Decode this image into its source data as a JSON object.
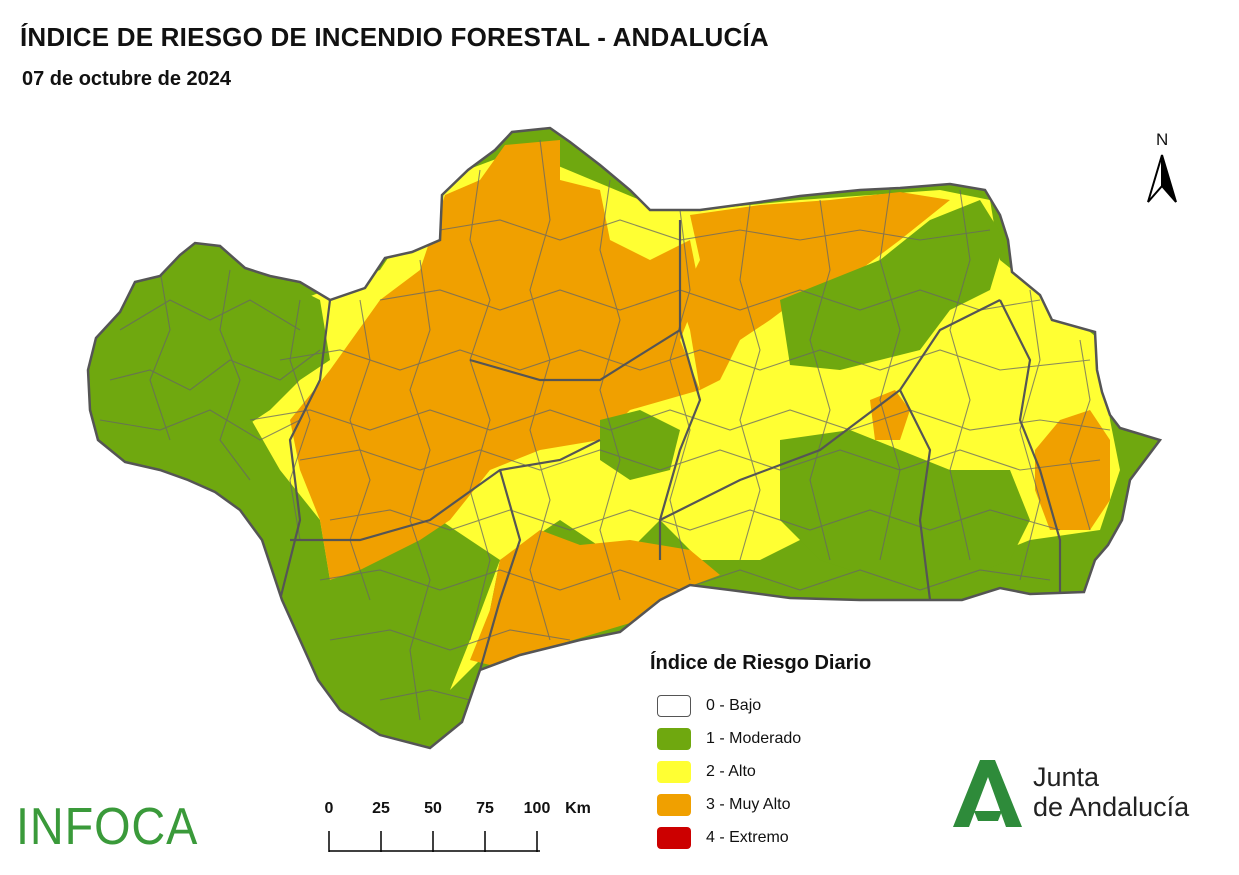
{
  "header": {
    "title": "ÍNDICE DE RIESGO DE INCENDIO FORESTAL - ANDALUCÍA",
    "date": "07 de octubre de 2024"
  },
  "map": {
    "region": "Andalucía",
    "north_label": "N",
    "colors": {
      "bajo": "#ffffff",
      "moderado": "#6fa80f",
      "alto": "#ffff33",
      "muy_alto": "#f0a000",
      "extremo": "#cc0000",
      "boundary": "#666666"
    }
  },
  "legend": {
    "title": "Índice de Riesgo Diario",
    "items": [
      {
        "label": "0 - Bajo",
        "color": "#ffffff"
      },
      {
        "label": "1 - Moderado",
        "color": "#6fa80f"
      },
      {
        "label": "2 - Alto",
        "color": "#ffff33"
      },
      {
        "label": "3 - Muy Alto",
        "color": "#f0a000"
      },
      {
        "label": "4 - Extremo",
        "color": "#cc0000"
      }
    ]
  },
  "scale_bar": {
    "ticks": [
      "0",
      "25",
      "50",
      "75",
      "100"
    ],
    "unit": "Km"
  },
  "logos": {
    "infoca": "INFOCA",
    "junta_line1": "Junta",
    "junta_line2": "de Andalucía"
  }
}
